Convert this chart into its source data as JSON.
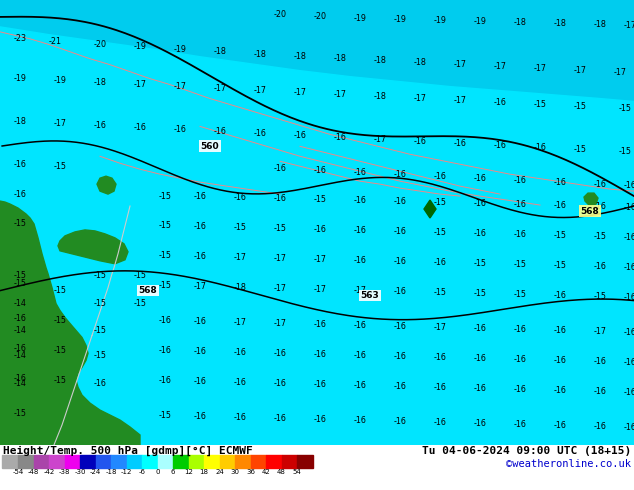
{
  "title_left": "Height/Temp. 500 hPa [gdmp][°C] ECMWF",
  "title_right": "Tu 04-06-2024 09:00 UTC (18+15)",
  "credit": "©weatheronline.co.uk",
  "colorbar_values": [
    "-54",
    "-48",
    "-42",
    "-38",
    "-30",
    "-24",
    "-18",
    "-12",
    "-6",
    "0",
    "6",
    "12",
    "18",
    "24",
    "30",
    "36",
    "42",
    "48",
    "54"
  ],
  "colorbar_colors": [
    "#888888",
    "#aa44aa",
    "#cc44cc",
    "#ee00ee",
    "#0000bb",
    "#2255ee",
    "#2288ff",
    "#00ccff",
    "#00ffff",
    "#aaffff",
    "#00cc00",
    "#aaff00",
    "#ffff00",
    "#ffcc00",
    "#ff8800",
    "#ff4400",
    "#ff0000",
    "#cc0000",
    "#880000"
  ],
  "sea_color_top": "#4499cc",
  "sea_color_mid": "#00e5ff",
  "sea_color_bot": "#00e5ff",
  "land_color": "#228B22",
  "bottom_bar_color": "#00e5ff",
  "fig_width": 6.34,
  "fig_height": 4.9,
  "dpi": 100,
  "title_fontsize": 8.0,
  "credit_fontsize": 7.5,
  "label_fs": 6.0
}
